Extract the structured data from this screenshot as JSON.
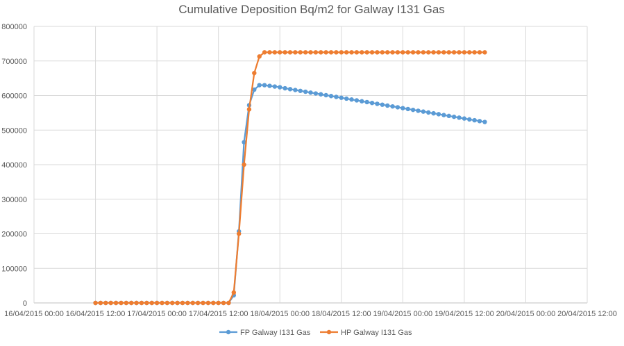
{
  "chart_data": {
    "type": "line",
    "title": "Cumulative Deposition Bq/m2 for Galway I131 Gas",
    "x_tick_labels": [
      "16/04/2015 00:00",
      "16/04/2015 12:00",
      "17/04/2015 00:00",
      "17/04/2015 12:00",
      "18/04/2015 00:00",
      "18/04/2015 12:00",
      "19/04/2015 00:00",
      "19/04/2015 12:00",
      "20/04/2015 00:00",
      "20/04/2015 12:00"
    ],
    "y_tick_labels": [
      "0",
      "100000",
      "200000",
      "300000",
      "400000",
      "500000",
      "600000",
      "700000",
      "800000"
    ],
    "ylim": [
      0,
      800000
    ],
    "grid": true,
    "legend_position": "bottom",
    "series": [
      {
        "name": "FP Galway I131 Gas",
        "color": "#5B9BD5",
        "points": [
          [
            "2015-04-16 12:00",
            0
          ],
          [
            "2015-04-16 13:00",
            0
          ],
          [
            "2015-04-16 14:00",
            0
          ],
          [
            "2015-04-16 15:00",
            0
          ],
          [
            "2015-04-16 16:00",
            0
          ],
          [
            "2015-04-16 17:00",
            0
          ],
          [
            "2015-04-16 18:00",
            0
          ],
          [
            "2015-04-16 19:00",
            0
          ],
          [
            "2015-04-16 20:00",
            0
          ],
          [
            "2015-04-16 21:00",
            0
          ],
          [
            "2015-04-16 22:00",
            0
          ],
          [
            "2015-04-16 23:00",
            0
          ],
          [
            "2015-04-17 00:00",
            0
          ],
          [
            "2015-04-17 01:00",
            0
          ],
          [
            "2015-04-17 02:00",
            0
          ],
          [
            "2015-04-17 03:00",
            0
          ],
          [
            "2015-04-17 04:00",
            0
          ],
          [
            "2015-04-17 05:00",
            0
          ],
          [
            "2015-04-17 06:00",
            0
          ],
          [
            "2015-04-17 07:00",
            0
          ],
          [
            "2015-04-17 08:00",
            0
          ],
          [
            "2015-04-17 09:00",
            0
          ],
          [
            "2015-04-17 10:00",
            0
          ],
          [
            "2015-04-17 11:00",
            0
          ],
          [
            "2015-04-17 12:00",
            0
          ],
          [
            "2015-04-17 13:00",
            0
          ],
          [
            "2015-04-17 14:00",
            0
          ],
          [
            "2015-04-17 15:00",
            22000
          ],
          [
            "2015-04-17 16:00",
            207000
          ],
          [
            "2015-04-17 17:00",
            465000
          ],
          [
            "2015-04-17 18:00",
            572000
          ],
          [
            "2015-04-17 19:00",
            617000
          ],
          [
            "2015-04-17 20:00",
            630000
          ],
          [
            "2015-04-17 21:00",
            630000
          ],
          [
            "2015-04-17 22:00",
            628000
          ],
          [
            "2015-04-17 23:00",
            626000
          ],
          [
            "2015-04-18 00:00",
            624000
          ],
          [
            "2015-04-18 01:00",
            621000
          ],
          [
            "2015-04-18 02:00",
            618500
          ],
          [
            "2015-04-18 03:00",
            616000
          ],
          [
            "2015-04-18 04:00",
            613500
          ],
          [
            "2015-04-18 05:00",
            611000
          ],
          [
            "2015-04-18 06:00",
            608500
          ],
          [
            "2015-04-18 07:00",
            606000
          ],
          [
            "2015-04-18 08:00",
            603500
          ],
          [
            "2015-04-18 09:00",
            601000
          ],
          [
            "2015-04-18 10:00",
            598500
          ],
          [
            "2015-04-18 11:00",
            596000
          ],
          [
            "2015-04-18 12:00",
            593500
          ],
          [
            "2015-04-18 13:00",
            591000
          ],
          [
            "2015-04-18 14:00",
            588500
          ],
          [
            "2015-04-18 15:00",
            586000
          ],
          [
            "2015-04-18 16:00",
            583500
          ],
          [
            "2015-04-18 17:00",
            581000
          ],
          [
            "2015-04-18 18:00",
            578500
          ],
          [
            "2015-04-18 19:00",
            576000
          ],
          [
            "2015-04-18 20:00",
            573500
          ],
          [
            "2015-04-18 21:00",
            571000
          ],
          [
            "2015-04-18 22:00",
            568500
          ],
          [
            "2015-04-18 23:00",
            566000
          ],
          [
            "2015-04-19 00:00",
            563500
          ],
          [
            "2015-04-19 01:00",
            561000
          ],
          [
            "2015-04-19 02:00",
            558500
          ],
          [
            "2015-04-19 03:00",
            556000
          ],
          [
            "2015-04-19 04:00",
            553500
          ],
          [
            "2015-04-19 05:00",
            551000
          ],
          [
            "2015-04-19 06:00",
            548500
          ],
          [
            "2015-04-19 07:00",
            546000
          ],
          [
            "2015-04-19 08:00",
            543500
          ],
          [
            "2015-04-19 09:00",
            541000
          ],
          [
            "2015-04-19 10:00",
            538500
          ],
          [
            "2015-04-19 11:00",
            536000
          ],
          [
            "2015-04-19 12:00",
            533500
          ],
          [
            "2015-04-19 13:00",
            531000
          ],
          [
            "2015-04-19 14:00",
            528500
          ],
          [
            "2015-04-19 15:00",
            526000
          ],
          [
            "2015-04-19 16:00",
            523500
          ]
        ]
      },
      {
        "name": "HP Galway I131 Gas",
        "color": "#ED7D31",
        "points": [
          [
            "2015-04-16 12:00",
            0
          ],
          [
            "2015-04-16 13:00",
            0
          ],
          [
            "2015-04-16 14:00",
            0
          ],
          [
            "2015-04-16 15:00",
            0
          ],
          [
            "2015-04-16 16:00",
            0
          ],
          [
            "2015-04-16 17:00",
            0
          ],
          [
            "2015-04-16 18:00",
            0
          ],
          [
            "2015-04-16 19:00",
            0
          ],
          [
            "2015-04-16 20:00",
            0
          ],
          [
            "2015-04-16 21:00",
            0
          ],
          [
            "2015-04-16 22:00",
            0
          ],
          [
            "2015-04-16 23:00",
            0
          ],
          [
            "2015-04-17 00:00",
            0
          ],
          [
            "2015-04-17 01:00",
            0
          ],
          [
            "2015-04-17 02:00",
            0
          ],
          [
            "2015-04-17 03:00",
            0
          ],
          [
            "2015-04-17 04:00",
            0
          ],
          [
            "2015-04-17 05:00",
            0
          ],
          [
            "2015-04-17 06:00",
            0
          ],
          [
            "2015-04-17 07:00",
            0
          ],
          [
            "2015-04-17 08:00",
            0
          ],
          [
            "2015-04-17 09:00",
            0
          ],
          [
            "2015-04-17 10:00",
            0
          ],
          [
            "2015-04-17 11:00",
            0
          ],
          [
            "2015-04-17 12:00",
            0
          ],
          [
            "2015-04-17 13:00",
            0
          ],
          [
            "2015-04-17 14:00",
            0
          ],
          [
            "2015-04-17 15:00",
            30000
          ],
          [
            "2015-04-17 16:00",
            200000
          ],
          [
            "2015-04-17 17:00",
            400000
          ],
          [
            "2015-04-17 18:00",
            560000
          ],
          [
            "2015-04-17 19:00",
            665000
          ],
          [
            "2015-04-17 20:00",
            713000
          ],
          [
            "2015-04-17 21:00",
            725000
          ],
          [
            "2015-04-17 22:00",
            725000
          ],
          [
            "2015-04-17 23:00",
            725000
          ],
          [
            "2015-04-18 00:00",
            725000
          ],
          [
            "2015-04-18 01:00",
            725000
          ],
          [
            "2015-04-18 02:00",
            725000
          ],
          [
            "2015-04-18 03:00",
            725000
          ],
          [
            "2015-04-18 04:00",
            725000
          ],
          [
            "2015-04-18 05:00",
            725000
          ],
          [
            "2015-04-18 06:00",
            725000
          ],
          [
            "2015-04-18 07:00",
            725000
          ],
          [
            "2015-04-18 08:00",
            725000
          ],
          [
            "2015-04-18 09:00",
            725000
          ],
          [
            "2015-04-18 10:00",
            725000
          ],
          [
            "2015-04-18 11:00",
            725000
          ],
          [
            "2015-04-18 12:00",
            725000
          ],
          [
            "2015-04-18 13:00",
            725000
          ],
          [
            "2015-04-18 14:00",
            725000
          ],
          [
            "2015-04-18 15:00",
            725000
          ],
          [
            "2015-04-18 16:00",
            725000
          ],
          [
            "2015-04-18 17:00",
            725000
          ],
          [
            "2015-04-18 18:00",
            725000
          ],
          [
            "2015-04-18 19:00",
            725000
          ],
          [
            "2015-04-18 20:00",
            725000
          ],
          [
            "2015-04-18 21:00",
            725000
          ],
          [
            "2015-04-18 22:00",
            725000
          ],
          [
            "2015-04-18 23:00",
            725000
          ],
          [
            "2015-04-19 00:00",
            725000
          ],
          [
            "2015-04-19 01:00",
            725000
          ],
          [
            "2015-04-19 02:00",
            725000
          ],
          [
            "2015-04-19 03:00",
            725000
          ],
          [
            "2015-04-19 04:00",
            725000
          ],
          [
            "2015-04-19 05:00",
            725000
          ],
          [
            "2015-04-19 06:00",
            725000
          ],
          [
            "2015-04-19 07:00",
            725000
          ],
          [
            "2015-04-19 08:00",
            725000
          ],
          [
            "2015-04-19 09:00",
            725000
          ],
          [
            "2015-04-19 10:00",
            725000
          ],
          [
            "2015-04-19 11:00",
            725000
          ],
          [
            "2015-04-19 12:00",
            725000
          ],
          [
            "2015-04-19 13:00",
            725000
          ],
          [
            "2015-04-19 14:00",
            725000
          ],
          [
            "2015-04-19 15:00",
            725000
          ],
          [
            "2015-04-19 16:00",
            725000
          ]
        ]
      }
    ]
  }
}
